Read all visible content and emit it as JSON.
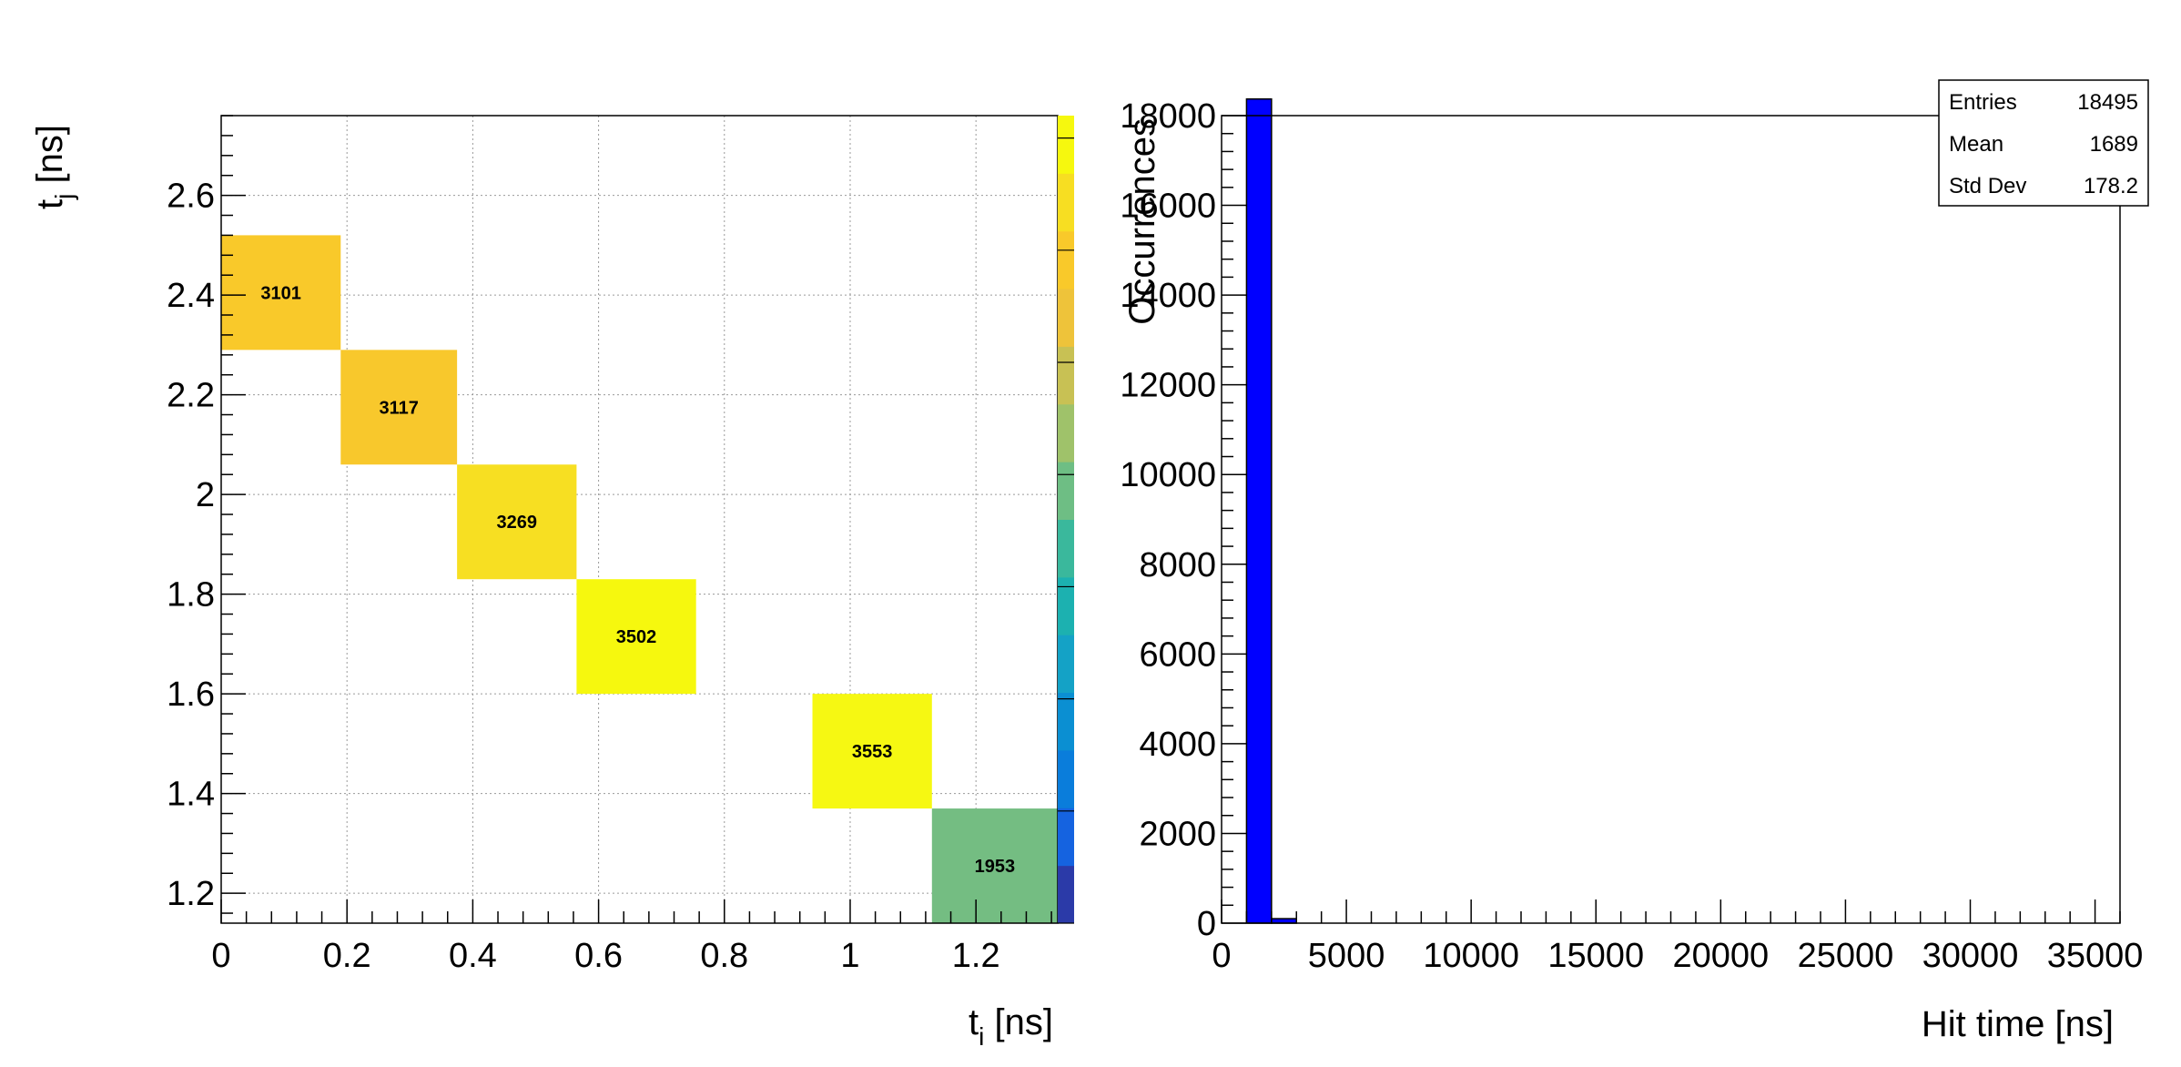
{
  "chart_data": [
    {
      "type": "heatmap",
      "title": "",
      "xlabel": "t_i [ns]",
      "ylabel": "t_j [ns]",
      "xlim": [
        0,
        1.33
      ],
      "ylim": [
        1.14,
        2.76
      ],
      "xticks": [
        "0",
        "0.2",
        "0.4",
        "0.6",
        "0.8",
        "1",
        "1.2"
      ],
      "yticks": [
        "1.2",
        "1.4",
        "1.6",
        "1.8",
        "2",
        "2.2",
        "2.4",
        "2.6"
      ],
      "zlim": [
        0,
        3600
      ],
      "grid": true,
      "colorbar": "right",
      "cells": [
        {
          "x": [
            0.0,
            0.19
          ],
          "y": [
            2.29,
            2.52
          ],
          "value": 3101,
          "color": "#f9c92a"
        },
        {
          "x": [
            0.19,
            0.375
          ],
          "y": [
            2.06,
            2.29
          ],
          "value": 3117,
          "color": "#f8c82c"
        },
        {
          "x": [
            0.375,
            0.565
          ],
          "y": [
            1.83,
            2.06
          ],
          "value": 3269,
          "color": "#f7df22"
        },
        {
          "x": [
            0.565,
            0.755
          ],
          "y": [
            1.6,
            1.83
          ],
          "value": 3502,
          "color": "#f6f80e"
        },
        {
          "x": [
            0.94,
            1.13
          ],
          "y": [
            1.37,
            1.6
          ],
          "value": 3553,
          "color": "#f6f812"
        },
        {
          "x": [
            1.13,
            1.33
          ],
          "y": [
            1.14,
            1.37
          ],
          "value": 1953,
          "color": "#74bd82"
        }
      ]
    },
    {
      "type": "bar",
      "title": "",
      "xlabel": "Hit time [ns]",
      "ylabel": "Occurrences",
      "xlim": [
        0,
        36000
      ],
      "ylim": [
        0,
        18000
      ],
      "xticks": [
        "0",
        "5000",
        "10000",
        "15000",
        "20000",
        "25000",
        "30000",
        "35000"
      ],
      "yticks": [
        "0",
        "2000",
        "4000",
        "6000",
        "8000",
        "10000",
        "12000",
        "14000",
        "16000",
        "18000"
      ],
      "bars": [
        {
          "x0": 1000,
          "x1": 2000,
          "value": 18370
        },
        {
          "x0": 2000,
          "x1": 3000,
          "value": 100
        }
      ],
      "bar_color": "#0000ff",
      "stats": {
        "rows": [
          {
            "label": "Entries",
            "value": "18495"
          },
          {
            "label": "Mean",
            "value": "1689"
          },
          {
            "label": "Std Dev",
            "value": "178.2"
          }
        ]
      }
    }
  ]
}
